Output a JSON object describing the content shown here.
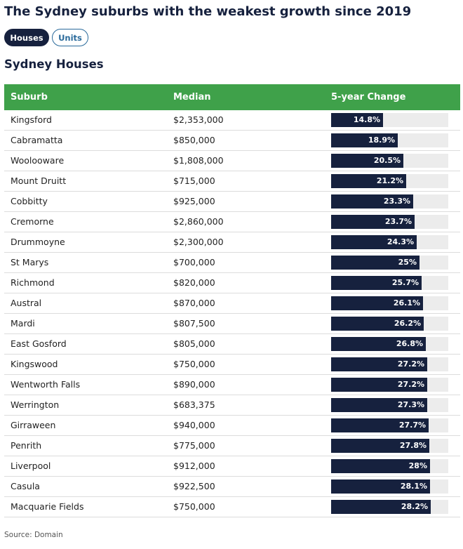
{
  "title": "The Sydney suburbs with the weakest growth since 2019",
  "toggle": {
    "houses": "Houses",
    "units": "Units",
    "active": "houses"
  },
  "subtitle": "Sydney Houses",
  "source": "Source: Domain",
  "colors": {
    "header_bg": "#3fa14a",
    "bar": "#16213e",
    "track": "#ececec",
    "pill_active": "#16213e",
    "pill_border": "#2a6a9b"
  },
  "chart_data": {
    "type": "table",
    "title": "Sydney Houses",
    "columns": [
      "Suburb",
      "Median",
      "5-year Change"
    ],
    "bar_max_percent": 33.2,
    "rows": [
      {
        "suburb": "Kingsford",
        "median": "$2,353,000",
        "change": 14.8,
        "change_label": "14.8%"
      },
      {
        "suburb": "Cabramatta",
        "median": "$850,000",
        "change": 18.9,
        "change_label": "18.9%"
      },
      {
        "suburb": "Woolooware",
        "median": "$1,808,000",
        "change": 20.5,
        "change_label": "20.5%"
      },
      {
        "suburb": "Mount Druitt",
        "median": "$715,000",
        "change": 21.2,
        "change_label": "21.2%"
      },
      {
        "suburb": "Cobbitty",
        "median": "$925,000",
        "change": 23.3,
        "change_label": "23.3%"
      },
      {
        "suburb": "Cremorne",
        "median": "$2,860,000",
        "change": 23.7,
        "change_label": "23.7%"
      },
      {
        "suburb": "Drummoyne",
        "median": "$2,300,000",
        "change": 24.3,
        "change_label": "24.3%"
      },
      {
        "suburb": "St Marys",
        "median": "$700,000",
        "change": 25,
        "change_label": "25%"
      },
      {
        "suburb": "Richmond",
        "median": "$820,000",
        "change": 25.7,
        "change_label": "25.7%"
      },
      {
        "suburb": "Austral",
        "median": "$870,000",
        "change": 26.1,
        "change_label": "26.1%"
      },
      {
        "suburb": "Mardi",
        "median": "$807,500",
        "change": 26.2,
        "change_label": "26.2%"
      },
      {
        "suburb": "East Gosford",
        "median": "$805,000",
        "change": 26.8,
        "change_label": "26.8%"
      },
      {
        "suburb": "Kingswood",
        "median": "$750,000",
        "change": 27.2,
        "change_label": "27.2%"
      },
      {
        "suburb": "Wentworth Falls",
        "median": "$890,000",
        "change": 27.2,
        "change_label": "27.2%"
      },
      {
        "suburb": "Werrington",
        "median": "$683,375",
        "change": 27.3,
        "change_label": "27.3%"
      },
      {
        "suburb": "Girraween",
        "median": "$940,000",
        "change": 27.7,
        "change_label": "27.7%"
      },
      {
        "suburb": "Penrith",
        "median": "$775,000",
        "change": 27.8,
        "change_label": "27.8%"
      },
      {
        "suburb": "Liverpool",
        "median": "$912,000",
        "change": 28,
        "change_label": "28%"
      },
      {
        "suburb": "Casula",
        "median": "$922,500",
        "change": 28.1,
        "change_label": "28.1%"
      },
      {
        "suburb": "Macquarie Fields",
        "median": "$750,000",
        "change": 28.2,
        "change_label": "28.2%"
      }
    ]
  }
}
